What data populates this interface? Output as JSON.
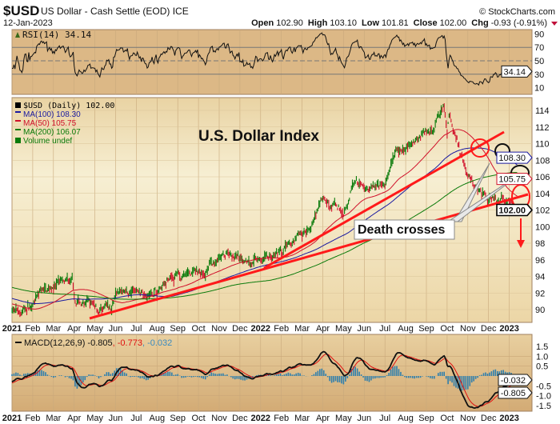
{
  "header": {
    "symbol": "$USD",
    "name": "US Dollar - Cash Settle (EOD) ICE",
    "copyright": "© StockCharts.com",
    "date": "12-Jan-2023",
    "open_label": "Open",
    "open": "102.90",
    "high_label": "High",
    "high": "103.10",
    "low_label": "Low",
    "low": "101.81",
    "close_label": "Close",
    "close": "102.00",
    "chg_label": "Chg",
    "chg": "-0.93 (-0.91%)"
  },
  "colors": {
    "up": "#0a7a0a",
    "down": "#d0102a",
    "ma100": "#1a1aa0",
    "ma50": "#d0102a",
    "ma200": "#0a7a0a",
    "hist": "#2f7fad",
    "annot": "#ff1a1a"
  },
  "chart_data": [
    {
      "type": "line",
      "title": "RSI(14) 34.14",
      "indicator": "RSI(14)",
      "last_value": "34.14",
      "yticks": [
        "90",
        "70",
        "50",
        "30",
        "10"
      ],
      "ylim": [
        0,
        100
      ],
      "reference_lines": [
        70,
        50,
        30
      ]
    },
    {
      "type": "bar",
      "title": "U.S. Dollar Index",
      "legend": [
        {
          "label": "$USD (Daily) 102.00",
          "color": "#000000"
        },
        {
          "label": "MA(100) 108.30",
          "color": "#1a1aa0"
        },
        {
          "label": "MA(50) 105.75",
          "color": "#d0102a"
        },
        {
          "label": "MA(200) 106.07",
          "color": "#0a7a0a"
        },
        {
          "label": "Volume undef",
          "color": "#0a7a0a"
        }
      ],
      "ylim": [
        88.5,
        115.5
      ],
      "yticks": [
        "114",
        "112",
        "110",
        "108",
        "106",
        "104",
        "102",
        "100",
        "98",
        "96",
        "94",
        "92",
        "90"
      ],
      "xticks": [
        {
          "label": "2021",
          "bold": true
        },
        {
          "label": "Feb"
        },
        {
          "label": "Mar"
        },
        {
          "label": "Apr"
        },
        {
          "label": "May"
        },
        {
          "label": "Jun"
        },
        {
          "label": "Jul"
        },
        {
          "label": "Aug"
        },
        {
          "label": "Sep"
        },
        {
          "label": "Oct"
        },
        {
          "label": "Nov"
        },
        {
          "label": "Dec"
        },
        {
          "label": "2022",
          "bold": true
        },
        {
          "label": "Feb"
        },
        {
          "label": "Mar"
        },
        {
          "label": "Apr"
        },
        {
          "label": "May"
        },
        {
          "label": "Jun"
        },
        {
          "label": "Jul"
        },
        {
          "label": "Aug"
        },
        {
          "label": "Sep"
        },
        {
          "label": "Oct"
        },
        {
          "label": "Nov"
        },
        {
          "label": "Dec"
        },
        {
          "label": "2023",
          "bold": true
        }
      ],
      "price_anchors_month_index": [
        [
          0,
          90.0
        ],
        [
          0.3,
          89.4
        ],
        [
          1,
          90.6
        ],
        [
          2,
          93.2
        ],
        [
          2.9,
          93.3
        ],
        [
          3,
          91.3
        ],
        [
          4,
          90.0
        ],
        [
          4.8,
          89.8
        ],
        [
          5,
          92.3
        ],
        [
          6,
          92.1
        ],
        [
          7,
          92.6
        ],
        [
          8,
          94.2
        ],
        [
          9,
          94.1
        ],
        [
          10,
          96.0
        ],
        [
          10.8,
          96.8
        ],
        [
          11,
          95.9
        ],
        [
          12,
          96.5
        ],
        [
          13,
          96.6
        ],
        [
          14,
          98.4
        ],
        [
          15,
          102.9
        ],
        [
          16,
          101.8
        ],
        [
          16.4,
          104.9
        ],
        [
          17,
          104.6
        ],
        [
          18,
          105.9
        ],
        [
          18.5,
          109.2
        ],
        [
          19,
          108.7
        ],
        [
          20,
          112.0
        ],
        [
          20.85,
          114.6
        ],
        [
          21,
          111.4
        ],
        [
          21.1,
          113.0
        ],
        [
          22,
          105.9
        ],
        [
          23,
          103.5
        ],
        [
          24,
          103.3
        ],
        [
          24.4,
          102.0
        ]
      ],
      "last_close": 102.0,
      "price_labels": [
        {
          "label": "108.30",
          "series": "MA(100)",
          "color": "#1a1aa0"
        },
        {
          "label": "105.75",
          "series": "MA(50)",
          "color": "#d0102a"
        },
        {
          "label": "102.00",
          "series": "$USD",
          "color": "#000000"
        }
      ],
      "annotations": {
        "callout": "Death crosses"
      }
    },
    {
      "type": "line",
      "title": "MACD(12,26,9)",
      "indicator": "MACD(12,26,9)",
      "values": {
        "macd": "-0.805",
        "signal": "-0.773",
        "histogram": "-0.032"
      },
      "yticks": [
        "1.5",
        "1.0",
        "0.5",
        "-0.5",
        "-1.0",
        "-1.5"
      ],
      "ylim": [
        -1.5,
        1.5
      ]
    }
  ]
}
